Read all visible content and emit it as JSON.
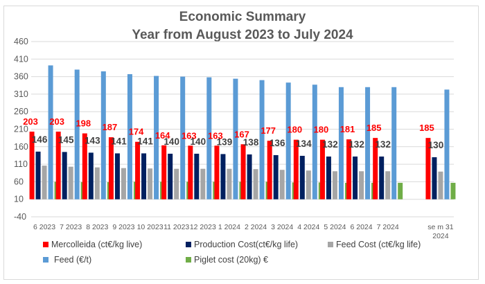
{
  "chart_data": {
    "type": "bar",
    "title": "Economic Summary",
    "subtitle": "Year from August 2023 to July 2024",
    "xlabel": "",
    "ylabel": "",
    "ylim": [
      -40,
      460
    ],
    "yticks": [
      460,
      410,
      360,
      310,
      260,
      210,
      160,
      110,
      60,
      10,
      -40
    ],
    "grid": true,
    "legend_position": "bottom",
    "categories": [
      "6 2023",
      "7 2023",
      "8 2023",
      "9 2023",
      "10 2023",
      "11 2023",
      "12 2023",
      "1 2024",
      "2 2024",
      "3 2024",
      "4 2024",
      "5 2024",
      "6 2024",
      "7 2024",
      "",
      "se m 31 2024"
    ],
    "category_lines": [
      [
        "6 2023"
      ],
      [
        "7 2023"
      ],
      [
        "8 2023"
      ],
      [
        "9 2023"
      ],
      [
        "10 2023"
      ],
      [
        "11 2023"
      ],
      [
        "12 2023"
      ],
      [
        "1 2024"
      ],
      [
        "2 2024"
      ],
      [
        "3 2024"
      ],
      [
        "4 2024"
      ],
      [
        "5 2024"
      ],
      [
        "6 2024"
      ],
      [
        "7 2024"
      ],
      [
        ""
      ],
      [
        "se m 31",
        "2024"
      ]
    ],
    "series": [
      {
        "name": "Mercolleida (ct€/kg live)",
        "color": "#ff0000",
        "labels": true,
        "label_color": "#ff0000",
        "values": [
          203,
          203,
          198,
          187,
          174,
          164,
          163,
          163,
          167,
          177,
          180,
          180,
          181,
          185,
          null,
          185
        ]
      },
      {
        "name": "Production Cost(ct€/kg life)",
        "color": "#002060",
        "labels": true,
        "label_color": "#404040",
        "values": [
          146,
          145,
          143,
          141,
          141,
          140,
          140,
          139,
          138,
          136,
          134,
          132,
          132,
          132,
          null,
          130
        ]
      },
      {
        "name": "Feed Cost (ct€/kg life)",
        "color": "#a6a6a6",
        "labels": false,
        "values": [
          106,
          103,
          101,
          99,
          98,
          97,
          97,
          97,
          96,
          94,
          92,
          90,
          90,
          90,
          null,
          89
        ]
      },
      {
        "name": "Feed (€/t)",
        "color": "#5b9bd5",
        "labels": false,
        "values": [
          392,
          380,
          375,
          367,
          362,
          360,
          358,
          354,
          350,
          343,
          337,
          330,
          330,
          330,
          null,
          323
        ]
      },
      {
        "name": "Piglet cost (20kg) €",
        "color": "#70ad47",
        "labels": false,
        "values": [
          60,
          59,
          59,
          60,
          60,
          60,
          60,
          60,
          60,
          58,
          58,
          57,
          57,
          57,
          null,
          57
        ]
      }
    ]
  }
}
